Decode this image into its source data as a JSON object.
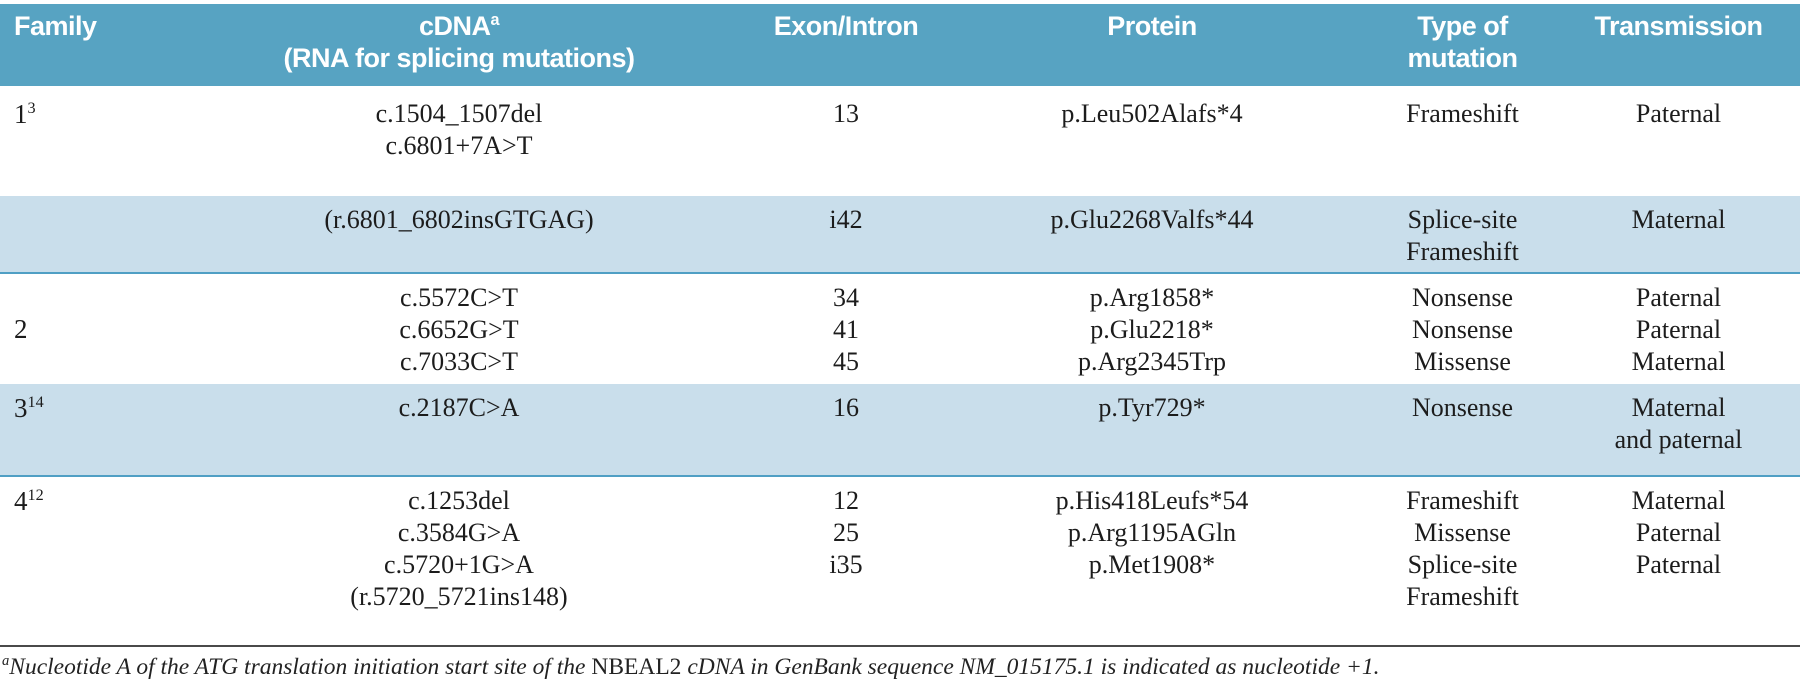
{
  "colors": {
    "header_bg": "#57a3c2",
    "band_bg": "#c9deeb",
    "band_border": "#4f9fc4",
    "header_text": "#ffffff",
    "body_text": "#1c1c1c",
    "footnote_rule": "#4a4a4a"
  },
  "header": {
    "family": "Family",
    "cdna": "cDNA",
    "cdna_sup": "a",
    "cdna_sub": "(RNA for splicing mutations)",
    "exon": "Exon/Intron",
    "protein": "Protein",
    "type": "Type of mutation",
    "transmission": "Transmission"
  },
  "groups": [
    {
      "family": "1",
      "sup": "3",
      "shaded": false,
      "lines": [
        {
          "cdna": "c.1504_1507del",
          "exon": "13",
          "protein": "p.Leu502Alafs*4",
          "type": "Frameshift",
          "transmission": "Paternal"
        },
        {
          "cdna": "c.6801+7A>T",
          "exon": "",
          "protein": "",
          "type": "",
          "transmission": ""
        }
      ]
    },
    {
      "family": "",
      "sup": "",
      "shaded": true,
      "lines": [
        {
          "cdna": "(r.6801_6802insGTGAG)",
          "exon": "i42",
          "protein": "p.Glu2268Valfs*44",
          "type": "Splice-site",
          "transmission": "Maternal"
        },
        {
          "cdna": "",
          "exon": "",
          "protein": "",
          "type": "Frameshift",
          "transmission": ""
        }
      ]
    },
    {
      "family": "2",
      "sup": "",
      "shaded": false,
      "lines": [
        {
          "cdna": "c.5572C>T",
          "exon": "34",
          "protein": "p.Arg1858*",
          "type": "Nonsense",
          "transmission": "Paternal"
        },
        {
          "cdna": "c.6652G>T",
          "exon": "41",
          "protein": "p.Glu2218*",
          "type": "Nonsense",
          "transmission": "Paternal"
        },
        {
          "cdna": "c.7033C>T",
          "exon": "45",
          "protein": "p.Arg2345Trp",
          "type": "Missense",
          "transmission": "Maternal"
        }
      ]
    },
    {
      "family": "3",
      "sup": "14",
      "shaded": true,
      "lines": [
        {
          "cdna": "c.2187C>A",
          "exon": "16",
          "protein": "p.Tyr729*",
          "type": "Nonsense",
          "transmission": "Maternal"
        },
        {
          "cdna": "",
          "exon": "",
          "protein": "",
          "type": "",
          "transmission": "and paternal"
        }
      ]
    },
    {
      "family": "4",
      "sup": "12",
      "shaded": false,
      "lines": [
        {
          "cdna": "c.1253del",
          "exon": "12",
          "protein": "p.His418Leufs*54",
          "type": "Frameshift",
          "transmission": "Maternal"
        },
        {
          "cdna": "c.3584G>A",
          "exon": "25",
          "protein": "p.Arg1195AGln",
          "type": "Missense",
          "transmission": "Paternal"
        },
        {
          "cdna": "c.5720+1G>A",
          "exon": "i35",
          "protein": "p.Met1908*",
          "type": "Splice-site",
          "transmission": "Paternal"
        },
        {
          "cdna": "(r.5720_5721ins148)",
          "exon": "",
          "protein": "",
          "type": "Frameshift",
          "transmission": ""
        }
      ]
    }
  ],
  "footnote": {
    "sup": "a",
    "before": "Nucleotide A of the ATG translation initiation start site of the ",
    "gene": "NBEAL2",
    "after": " cDNA in GenBank sequence NM_015175.1 is indicated as nucleotide +1."
  }
}
